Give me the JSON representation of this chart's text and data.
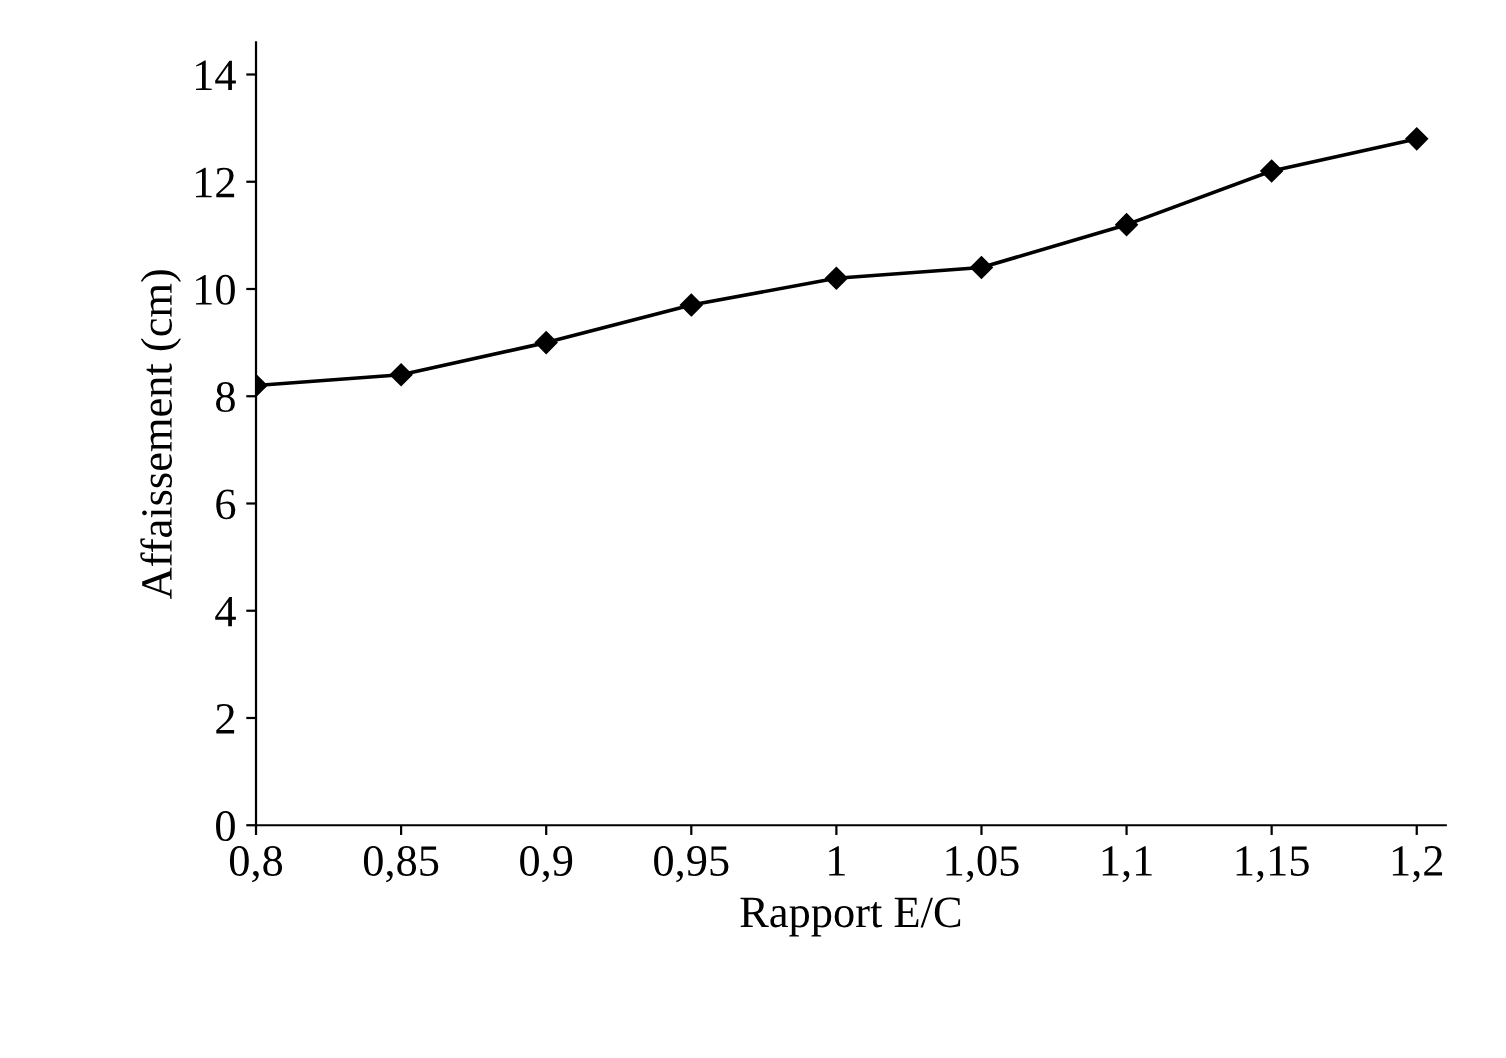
{
  "chart_data": {
    "type": "line",
    "xlabel": "Rapport E/C",
    "ylabel": "Affaissement (cm)",
    "x": [
      0.8,
      0.85,
      0.9,
      0.95,
      1.0,
      1.05,
      1.1,
      1.15,
      1.2
    ],
    "series": [
      {
        "color": "#000000",
        "values": [
          8.2,
          8.4,
          9.0,
          9.7,
          10.2,
          10.4,
          11.2,
          12.2,
          12.8
        ]
      }
    ],
    "xlim": [
      0.8,
      1.21
    ],
    "ylim": [
      0,
      14.6
    ],
    "xticks": [
      {
        "value": 0.8,
        "label": "0,8"
      },
      {
        "value": 0.85,
        "label": "0,85"
      },
      {
        "value": 0.9,
        "label": "0,9"
      },
      {
        "value": 0.95,
        "label": "0,95"
      },
      {
        "value": 1.0,
        "label": "1"
      },
      {
        "value": 1.05,
        "label": "1,05"
      },
      {
        "value": 1.1,
        "label": "1,1"
      },
      {
        "value": 1.15,
        "label": "1,15"
      },
      {
        "value": 1.2,
        "label": "1,2"
      }
    ],
    "yticks": [
      0,
      2,
      4,
      6,
      8,
      10,
      12,
      14
    ],
    "grid": false,
    "marker": "diamond",
    "line_style": "solid"
  }
}
